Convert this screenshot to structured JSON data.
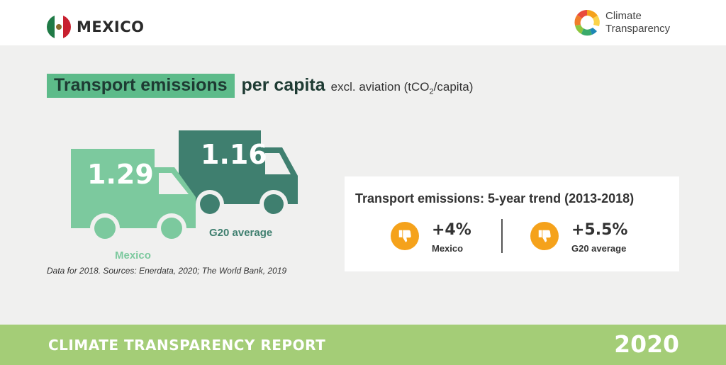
{
  "header": {
    "country": "MEXICO",
    "brand_line1": "Climate",
    "brand_line2": "Transparency"
  },
  "title": {
    "highlight": "Transport emissions",
    "bold": "per capita",
    "light_prefix": "excl. aviation (tCO",
    "light_sub": "2",
    "light_suffix": "/capita)"
  },
  "trucks": {
    "mexico": {
      "value": "1.29",
      "label": "Mexico",
      "color": "#7cc99e"
    },
    "g20": {
      "value": "1.16",
      "label": "G20 average",
      "color": "#3f7f6f"
    }
  },
  "source": "Data for 2018. Sources: Enerdata, 2020; The World Bank, 2019",
  "trend": {
    "title": "Transport emissions: 5-year trend (2013-2018)",
    "items": [
      {
        "value": "+4%",
        "name": "Mexico",
        "icon": "thumbs-down-icon"
      },
      {
        "value": "+5.5%",
        "name": "G20 average",
        "icon": "thumbs-down-icon"
      }
    ],
    "icon_color": "#f5a21b"
  },
  "footer": {
    "left": "CLIMATE TRANSPARENCY REPORT",
    "right": "2020",
    "color": "#a4cd77"
  }
}
